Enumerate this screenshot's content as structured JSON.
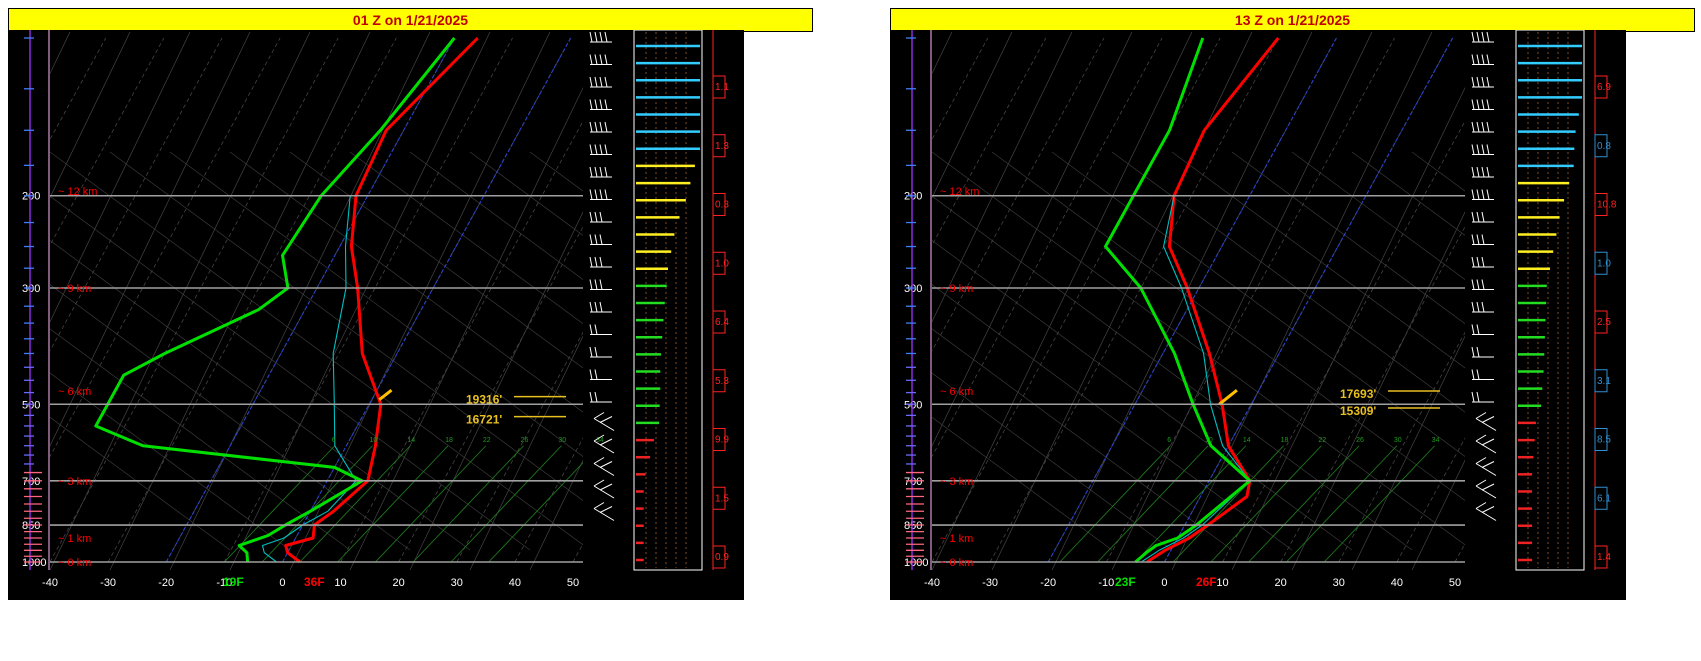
{
  "colors": {
    "temperature": "#ff0000",
    "dewpoint": "#00e000",
    "wetbulb": "#00c0c0",
    "icing": "#ffc000",
    "isobar": "#a0a0a0",
    "km_label": "#ff0000",
    "title_bg": "#ffff00",
    "title_text": "#c00000"
  },
  "chart_data": [
    {
      "type": "line",
      "title": "01 Z on 1/21/2025",
      "x_ticks": [
        "-40",
        "-30",
        "-20",
        "-10",
        "0",
        "10",
        "20",
        "30",
        "40",
        "50"
      ],
      "xlim": [
        -40,
        50
      ],
      "pressure_ticks": [
        "200",
        "300",
        "500",
        "700",
        "850",
        "1000"
      ],
      "km_labels": [
        "12 km",
        "9 km",
        "6 km",
        "3 km",
        "1 km",
        "0 km"
      ],
      "mixing_ratio_labels": [
        "6",
        "10",
        "14",
        "18",
        "22",
        "26",
        "30",
        "34"
      ],
      "surface_dewpoint_label": "19F",
      "surface_temp_label": "36F",
      "height_annotations": [
        "19316'",
        "16721'"
      ],
      "right_scale_values": [
        "1.1",
        "1.3",
        "0.3",
        "1.0",
        "6.4",
        "5.3",
        "9.9",
        "1.5",
        "0.9"
      ],
      "series": [
        {
          "role": "temperature",
          "points": [
            [
              1000,
              3
            ],
            [
              960,
              0
            ],
            [
              930,
              -1
            ],
            [
              900,
              3
            ],
            [
              850,
              2
            ],
            [
              800,
              4
            ],
            [
              700,
              7
            ],
            [
              600,
              5
            ],
            [
              500,
              2
            ],
            [
              400,
              -6
            ],
            [
              300,
              -13
            ],
            [
              250,
              -18
            ],
            [
              200,
              -22
            ],
            [
              150,
              -23
            ],
            [
              100,
              -16
            ]
          ]
        },
        {
          "role": "wetbulb",
          "points": [
            [
              1000,
              -1
            ],
            [
              960,
              -4
            ],
            [
              930,
              -5
            ],
            [
              900,
              -2
            ],
            [
              850,
              0
            ],
            [
              800,
              3
            ],
            [
              700,
              5
            ],
            [
              600,
              -2
            ],
            [
              500,
              -6
            ],
            [
              400,
              -11
            ],
            [
              300,
              -15
            ],
            [
              250,
              -19
            ],
            [
              200,
              -23
            ]
          ]
        },
        {
          "role": "dewpoint",
          "points": [
            [
              1000,
              -6
            ],
            [
              960,
              -7
            ],
            [
              930,
              -9
            ],
            [
              890,
              -5
            ],
            [
              850,
              -3
            ],
            [
              800,
              0
            ],
            [
              700,
              6
            ],
            [
              660,
              0
            ],
            [
              600,
              -35
            ],
            [
              550,
              -45
            ],
            [
              500,
              -45
            ],
            [
              440,
              -45
            ],
            [
              400,
              -40
            ],
            [
              330,
              -28
            ],
            [
              300,
              -25
            ],
            [
              260,
              -29
            ],
            [
              200,
              -28
            ],
            [
              150,
              -24
            ],
            [
              100,
              -20
            ]
          ]
        },
        {
          "role": "icing",
          "points": [
            [
              490,
              1.3
            ],
            [
              470,
              2.5
            ]
          ]
        }
      ],
      "wind_levels": 22,
      "bar_levels": [
        {
          "pct": 1.0,
          "color": "cyan"
        },
        {
          "pct": 1.0,
          "color": "cyan"
        },
        {
          "pct": 1.0,
          "color": "cyan"
        },
        {
          "pct": 1.0,
          "color": "cyan"
        },
        {
          "pct": 1.0,
          "color": "cyan"
        },
        {
          "pct": 1.0,
          "color": "cyan"
        },
        {
          "pct": 1.0,
          "color": "cyan"
        },
        {
          "pct": 0.92,
          "color": "yellow"
        },
        {
          "pct": 0.85,
          "color": "yellow"
        },
        {
          "pct": 0.78,
          "color": "yellow"
        },
        {
          "pct": 0.68,
          "color": "yellow"
        },
        {
          "pct": 0.6,
          "color": "yellow"
        },
        {
          "pct": 0.55,
          "color": "yellow"
        },
        {
          "pct": 0.5,
          "color": "yellow"
        },
        {
          "pct": 0.48,
          "color": "green"
        },
        {
          "pct": 0.45,
          "color": "green"
        },
        {
          "pct": 0.43,
          "color": "green"
        },
        {
          "pct": 0.41,
          "color": "green"
        },
        {
          "pct": 0.39,
          "color": "green"
        },
        {
          "pct": 0.38,
          "color": "green"
        },
        {
          "pct": 0.38,
          "color": "green"
        },
        {
          "pct": 0.37,
          "color": "green"
        },
        {
          "pct": 0.36,
          "color": "green"
        },
        {
          "pct": 0.28,
          "color": "red"
        },
        {
          "pct": 0.22,
          "color": "red"
        },
        {
          "pct": 0.15,
          "color": "red"
        },
        {
          "pct": 0.12,
          "color": "red"
        },
        {
          "pct": 0.12,
          "color": "red"
        },
        {
          "pct": 0.12,
          "color": "red"
        },
        {
          "pct": 0.12,
          "color": "red"
        },
        {
          "pct": 0.12,
          "color": "red"
        }
      ]
    },
    {
      "type": "line",
      "title": "13 Z on 1/21/2025",
      "x_ticks": [
        "-40",
        "-30",
        "-20",
        "-10",
        "0",
        "10",
        "20",
        "30",
        "40",
        "50"
      ],
      "xlim": [
        -40,
        50
      ],
      "pressure_ticks": [
        "200",
        "300",
        "500",
        "700",
        "850",
        "1000"
      ],
      "km_labels": [
        "12 km",
        "9 km",
        "6 km",
        "3 km",
        "1 km",
        "0 km"
      ],
      "mixing_ratio_labels": [
        "6",
        "10",
        "14",
        "18",
        "22",
        "26",
        "30",
        "34"
      ],
      "surface_dewpoint_label": "23F",
      "surface_temp_label": "26F",
      "height_annotations": [
        "17693'",
        "15309'"
      ],
      "right_scale_values": [
        "6.9",
        "0.8",
        "10.8",
        "1.0",
        "2.5",
        "3.1",
        "8.5",
        "6.1",
        "1.4"
      ],
      "series": [
        {
          "role": "temperature",
          "points": [
            [
              1000,
              -3
            ],
            [
              950,
              -1
            ],
            [
              900,
              2
            ],
            [
              850,
              4
            ],
            [
              750,
              8
            ],
            [
              700,
              7
            ],
            [
              600,
              0
            ],
            [
              500,
              -5
            ],
            [
              400,
              -12
            ],
            [
              300,
              -22
            ],
            [
              250,
              -29
            ],
            [
              200,
              -33
            ],
            [
              150,
              -34
            ],
            [
              100,
              -30
            ]
          ]
        },
        {
          "role": "wetbulb",
          "points": [
            [
              1000,
              -4
            ],
            [
              950,
              -2
            ],
            [
              900,
              1
            ],
            [
              850,
              3
            ],
            [
              700,
              7
            ],
            [
              600,
              -1
            ],
            [
              500,
              -7
            ],
            [
              400,
              -13
            ],
            [
              300,
              -23
            ],
            [
              250,
              -30
            ],
            [
              200,
              -33
            ]
          ]
        },
        {
          "role": "dewpoint",
          "points": [
            [
              1000,
              -5
            ],
            [
              960,
              -4
            ],
            [
              930,
              -3
            ],
            [
              900,
              0
            ],
            [
              850,
              2
            ],
            [
              700,
              7
            ],
            [
              600,
              -3
            ],
            [
              500,
              -10
            ],
            [
              400,
              -18
            ],
            [
              300,
              -30
            ],
            [
              250,
              -40
            ],
            [
              200,
              -40
            ],
            [
              150,
              -40
            ],
            [
              100,
              -43
            ]
          ]
        },
        {
          "role": "icing",
          "points": [
            [
              500,
              -5.5
            ],
            [
              470,
              -3.8
            ]
          ]
        }
      ],
      "wind_levels": 22,
      "bar_levels": [
        {
          "pct": 1.0,
          "color": "cyan"
        },
        {
          "pct": 1.0,
          "color": "cyan"
        },
        {
          "pct": 1.0,
          "color": "cyan"
        },
        {
          "pct": 1.0,
          "color": "cyan"
        },
        {
          "pct": 0.95,
          "color": "cyan"
        },
        {
          "pct": 0.9,
          "color": "cyan"
        },
        {
          "pct": 0.88,
          "color": "cyan"
        },
        {
          "pct": 0.87,
          "color": "cyan"
        },
        {
          "pct": 0.8,
          "color": "yellow"
        },
        {
          "pct": 0.72,
          "color": "yellow"
        },
        {
          "pct": 0.65,
          "color": "yellow"
        },
        {
          "pct": 0.6,
          "color": "yellow"
        },
        {
          "pct": 0.55,
          "color": "yellow"
        },
        {
          "pct": 0.5,
          "color": "yellow"
        },
        {
          "pct": 0.45,
          "color": "green"
        },
        {
          "pct": 0.44,
          "color": "green"
        },
        {
          "pct": 0.43,
          "color": "green"
        },
        {
          "pct": 0.42,
          "color": "green"
        },
        {
          "pct": 0.41,
          "color": "green"
        },
        {
          "pct": 0.4,
          "color": "green"
        },
        {
          "pct": 0.38,
          "color": "green"
        },
        {
          "pct": 0.36,
          "color": "green"
        },
        {
          "pct": 0.28,
          "color": "red"
        },
        {
          "pct": 0.26,
          "color": "red"
        },
        {
          "pct": 0.24,
          "color": "red"
        },
        {
          "pct": 0.22,
          "color": "red"
        },
        {
          "pct": 0.22,
          "color": "red"
        },
        {
          "pct": 0.22,
          "color": "red"
        },
        {
          "pct": 0.22,
          "color": "red"
        },
        {
          "pct": 0.22,
          "color": "red"
        },
        {
          "pct": 0.22,
          "color": "red"
        }
      ]
    }
  ]
}
